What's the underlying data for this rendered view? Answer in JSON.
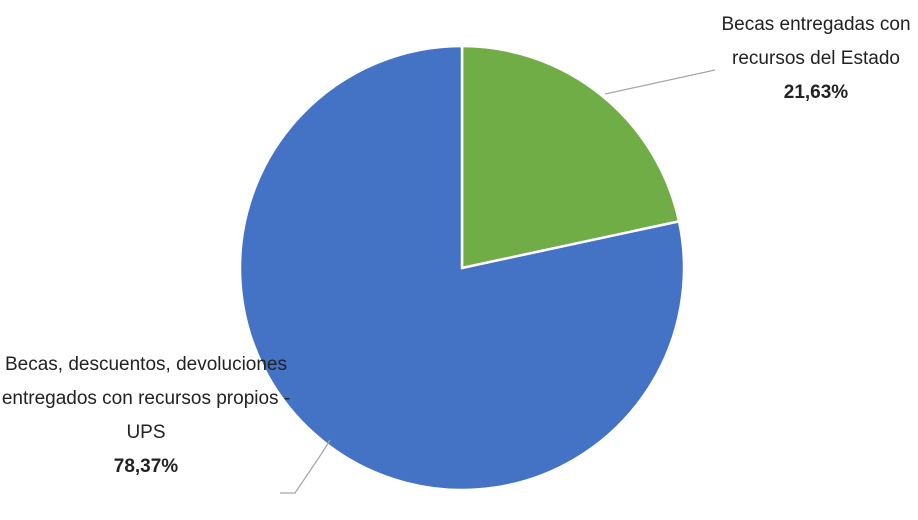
{
  "chart_data": {
    "type": "pie",
    "categories": [
      "Becas entregadas con recursos del Estado",
      "Becas, descuentos, devoluciones entregados con recursos propios - UPS"
    ],
    "values": [
      21.63,
      78.37
    ],
    "value_labels": [
      "21,63%",
      "78,37%"
    ],
    "colors": [
      "#70ad47",
      "#4472c4"
    ]
  }
}
